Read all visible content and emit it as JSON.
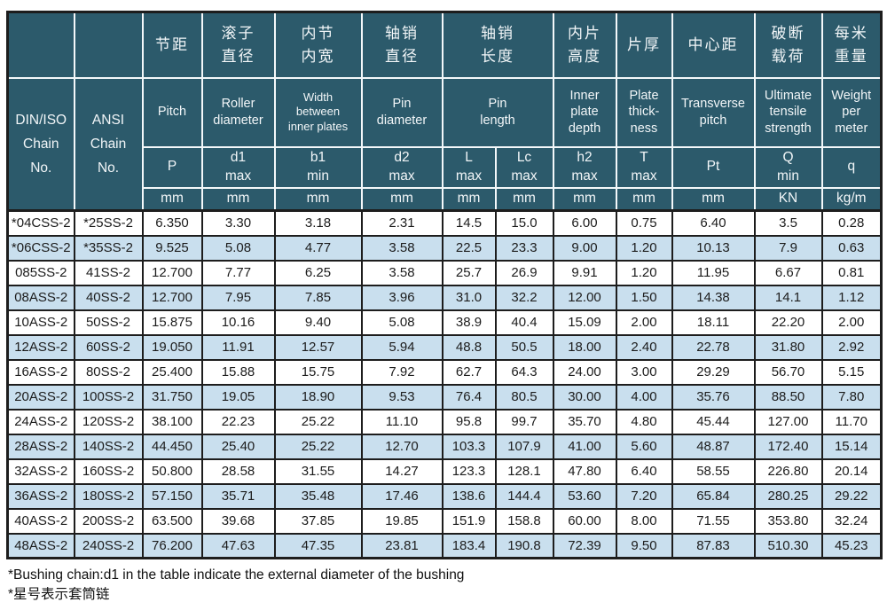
{
  "colors": {
    "header_bg": "#2C5A6B",
    "header_grid": "#F4F8FA",
    "row_alt_bg": "#C9DFEE",
    "row_bg": "#FFFFFF",
    "border_dark": "#1D1D1D",
    "text_dark": "#1C1C1C",
    "header_text": "#F2F6F8"
  },
  "table": {
    "corner": {
      "din_iso": "DIN/ISO\nChain\nNo.",
      "ansi": "ANSI\nChain\nNo."
    },
    "columns_cn": [
      "节距",
      "滚子\n直径",
      "内节\n内宽",
      "轴销\n直径",
      "轴销\n长度",
      "内片\n高度",
      "片厚",
      "中心距",
      "破断\n载荷",
      "每米\n重量"
    ],
    "columns_en": [
      "Pitch",
      "Roller\ndiameter",
      "Width\nbetween\ninner plates",
      "Pin\ndiameter",
      "Pin\nlength",
      "Inner\nplate\ndepth",
      "Plate\nthick-\nness",
      "Transverse\npitch",
      "Ultimate\ntensile\nstrength",
      "Weight\nper\nmeter"
    ],
    "symbols": [
      "P",
      "d1\nmax",
      "b1\nmin",
      "d2\nmax",
      "L\nmax",
      "Lc\nmax",
      "h2\nmax",
      "T\nmax",
      "Pt",
      "Q\nmin",
      "q"
    ],
    "units": [
      "mm",
      "mm",
      "mm",
      "mm",
      "mm",
      "mm",
      "mm",
      "mm",
      "mm",
      "KN",
      "kg/m"
    ],
    "rows": [
      [
        "*04CSS-2",
        "*25SS-2",
        "6.350",
        "3.30",
        "3.18",
        "2.31",
        "14.5",
        "15.0",
        "6.00",
        "0.75",
        "6.40",
        "3.5",
        "0.28"
      ],
      [
        "*06CSS-2",
        "*35SS-2",
        "9.525",
        "5.08",
        "4.77",
        "3.58",
        "22.5",
        "23.3",
        "9.00",
        "1.20",
        "10.13",
        "7.9",
        "0.63"
      ],
      [
        "085SS-2",
        "41SS-2",
        "12.700",
        "7.77",
        "6.25",
        "3.58",
        "25.7",
        "26.9",
        "9.91",
        "1.20",
        "11.95",
        "6.67",
        "0.81"
      ],
      [
        "08ASS-2",
        "40SS-2",
        "12.700",
        "7.95",
        "7.85",
        "3.96",
        "31.0",
        "32.2",
        "12.00",
        "1.50",
        "14.38",
        "14.1",
        "1.12"
      ],
      [
        "10ASS-2",
        "50SS-2",
        "15.875",
        "10.16",
        "9.40",
        "5.08",
        "38.9",
        "40.4",
        "15.09",
        "2.00",
        "18.11",
        "22.20",
        "2.00"
      ],
      [
        "12ASS-2",
        "60SS-2",
        "19.050",
        "11.91",
        "12.57",
        "5.94",
        "48.8",
        "50.5",
        "18.00",
        "2.40",
        "22.78",
        "31.80",
        "2.92"
      ],
      [
        "16ASS-2",
        "80SS-2",
        "25.400",
        "15.88",
        "15.75",
        "7.92",
        "62.7",
        "64.3",
        "24.00",
        "3.00",
        "29.29",
        "56.70",
        "5.15"
      ],
      [
        "20ASS-2",
        "100SS-2",
        "31.750",
        "19.05",
        "18.90",
        "9.53",
        "76.4",
        "80.5",
        "30.00",
        "4.00",
        "35.76",
        "88.50",
        "7.80"
      ],
      [
        "24ASS-2",
        "120SS-2",
        "38.100",
        "22.23",
        "25.22",
        "11.10",
        "95.8",
        "99.7",
        "35.70",
        "4.80",
        "45.44",
        "127.00",
        "11.70"
      ],
      [
        "28ASS-2",
        "140SS-2",
        "44.450",
        "25.40",
        "25.22",
        "12.70",
        "103.3",
        "107.9",
        "41.00",
        "5.60",
        "48.87",
        "172.40",
        "15.14"
      ],
      [
        "32ASS-2",
        "160SS-2",
        "50.800",
        "28.58",
        "31.55",
        "14.27",
        "123.3",
        "128.1",
        "47.80",
        "6.40",
        "58.55",
        "226.80",
        "20.14"
      ],
      [
        "36ASS-2",
        "180SS-2",
        "57.150",
        "35.71",
        "35.48",
        "17.46",
        "138.6",
        "144.4",
        "53.60",
        "7.20",
        "65.84",
        "280.25",
        "29.22"
      ],
      [
        "40ASS-2",
        "200SS-2",
        "63.500",
        "39.68",
        "37.85",
        "19.85",
        "151.9",
        "158.8",
        "60.00",
        "8.00",
        "71.55",
        "353.80",
        "32.24"
      ],
      [
        "48ASS-2",
        "240SS-2",
        "76.200",
        "47.63",
        "47.35",
        "23.81",
        "183.4",
        "190.8",
        "72.39",
        "9.50",
        "87.83",
        "510.30",
        "45.23"
      ]
    ]
  },
  "footnotes": [
    "*Bushing chain:d1 in the table indicate the external diameter of the bushing",
    "*星号表示套筒链"
  ]
}
